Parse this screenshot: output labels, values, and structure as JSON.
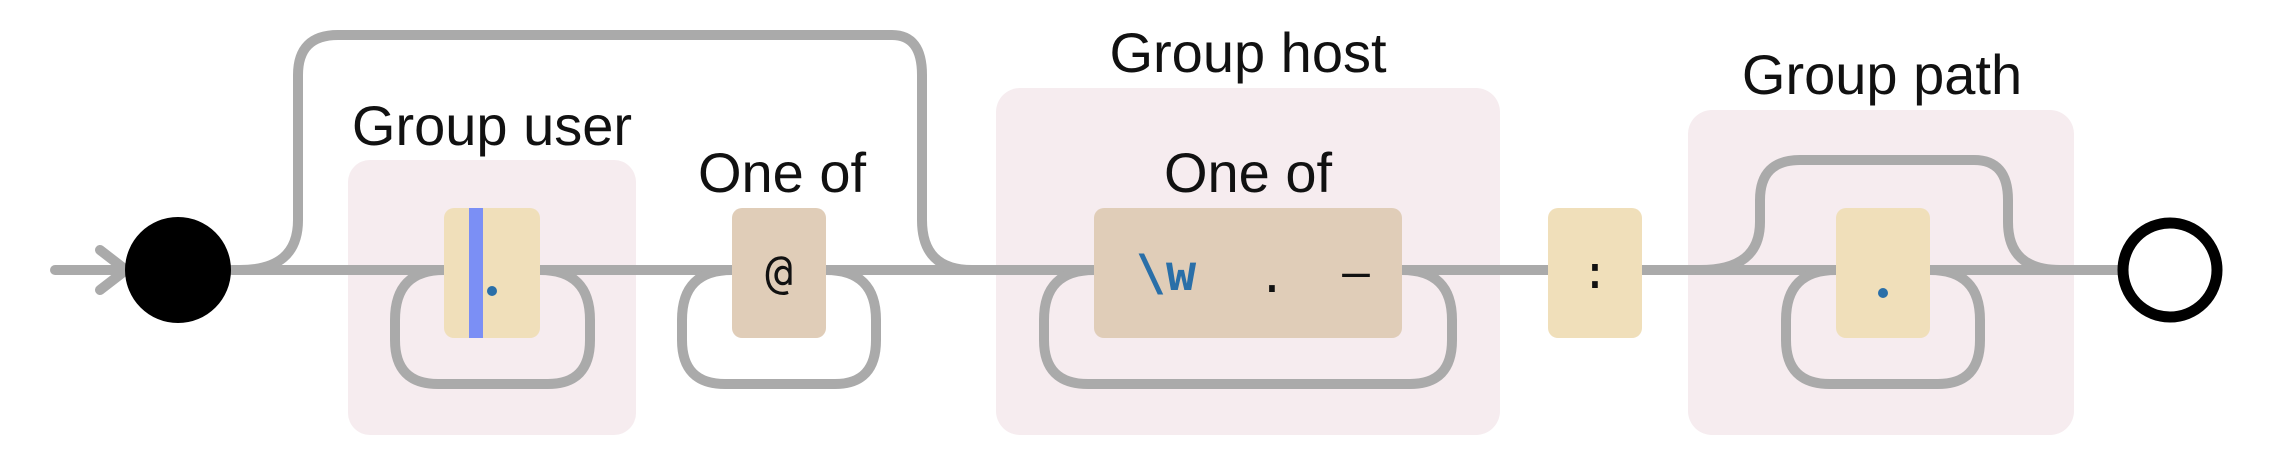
{
  "groups": [
    {
      "label": "Group user"
    },
    {
      "label": "Group host"
    },
    {
      "label": "Group path"
    }
  ],
  "one_of_labels": [
    "One of",
    "One of"
  ],
  "tokens": {
    "at": "@",
    "word": "\\w",
    "dot": ".",
    "dash": "–",
    "colon": ":"
  },
  "colors": {
    "group_bg": "#f6ecef",
    "literal_bg": "#f0dfba",
    "charclass_bg": "#e0cdb8",
    "rail": "#aaaaaa",
    "cursor": "#7b8ff5",
    "dot_blue": "#2a6fa8"
  }
}
